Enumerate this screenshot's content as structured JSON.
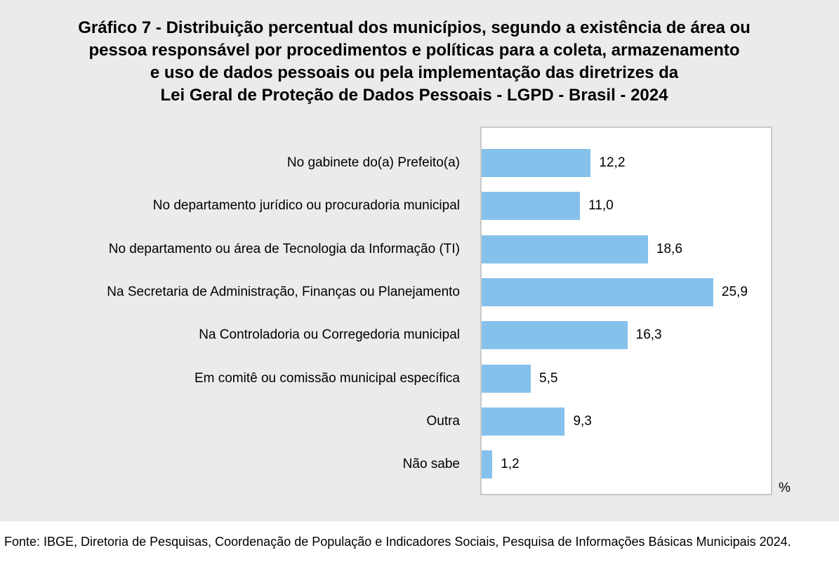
{
  "chart_data": {
    "type": "bar",
    "orientation": "horizontal",
    "title": "Gráfico 7 - Distribuição percentual dos municípios, segundo a existência de área ou pessoa responsável por procedimentos e políticas para a coleta, armazenamento e uso de dados pessoais ou pela implementação das diretrizes da Lei Geral de Proteção de Dados Pessoais - LGPD - Brasil - 2024",
    "title_lines": [
      "Gráfico 7 - Distribuição percentual dos municípios, segundo a existência de área ou",
      "pessoa responsável por procedimentos e políticas para a coleta, armazenamento",
      "e uso de dados pessoais ou pela implementação das diretrizes da",
      "Lei Geral de Proteção de Dados Pessoais - LGPD - Brasil - 2024"
    ],
    "categories": [
      "No gabinete do(a) Prefeito(a)",
      "No departamento jurídico ou procuradoria municipal",
      "No departamento ou área de Tecnologia da Informação (TI)",
      "Na Secretaria de Administração, Finanças ou Planejamento",
      "Na Controladoria ou Corregedoria municipal",
      "Em comitê ou comissão municipal específica",
      "Outra",
      "Não sabe"
    ],
    "values": [
      12.2,
      11.0,
      18.6,
      25.9,
      16.3,
      5.5,
      9.3,
      1.2
    ],
    "data_labels": [
      "12,2",
      "11,0",
      "18,6",
      "25,9",
      "16,3",
      "5,5",
      "9,3",
      "1,2"
    ],
    "unit": "%",
    "xlim": [
      0,
      32.5
    ],
    "grid": false,
    "bar_color": "#86c1ec",
    "background": "#ebebeb"
  },
  "source": "Fonte: IBGE, Diretoria de Pesquisas, Coordenação de População e Indicadores Sociais, Pesquisa de Informações Básicas Municipais 2024."
}
